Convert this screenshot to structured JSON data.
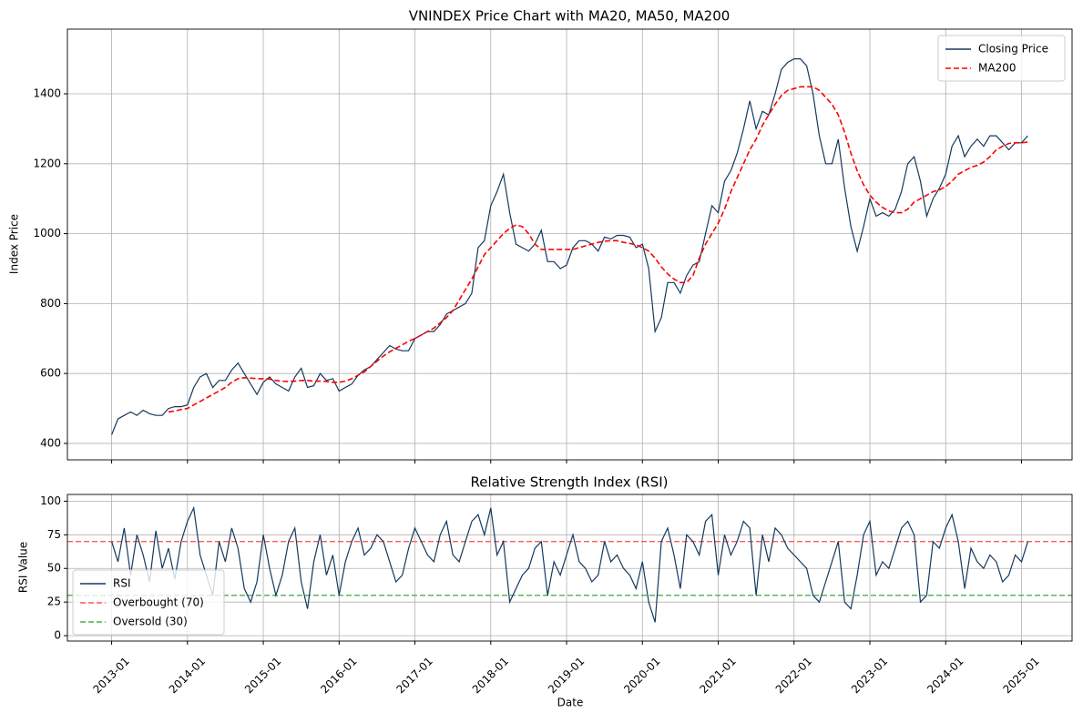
{
  "chart_data": [
    {
      "type": "line",
      "title": "VNINDEX Price Chart with MA20, MA50, MA200",
      "y_label": "Index Price",
      "x": [
        "2013-01",
        "2013-02",
        "2013-03",
        "2013-04",
        "2013-05",
        "2013-06",
        "2013-07",
        "2013-08",
        "2013-09",
        "2013-10",
        "2013-11",
        "2013-12",
        "2014-01",
        "2014-02",
        "2014-03",
        "2014-04",
        "2014-05",
        "2014-06",
        "2014-07",
        "2014-08",
        "2014-09",
        "2014-10",
        "2014-11",
        "2014-12",
        "2015-01",
        "2015-02",
        "2015-03",
        "2015-04",
        "2015-05",
        "2015-06",
        "2015-07",
        "2015-08",
        "2015-09",
        "2015-10",
        "2015-11",
        "2015-12",
        "2016-01",
        "2016-02",
        "2016-03",
        "2016-04",
        "2016-05",
        "2016-06",
        "2016-07",
        "2016-08",
        "2016-09",
        "2016-10",
        "2016-11",
        "2016-12",
        "2017-01",
        "2017-02",
        "2017-03",
        "2017-04",
        "2017-05",
        "2017-06",
        "2017-07",
        "2017-08",
        "2017-09",
        "2017-10",
        "2017-11",
        "2017-12",
        "2018-01",
        "2018-02",
        "2018-03",
        "2018-04",
        "2018-05",
        "2018-06",
        "2018-07",
        "2018-08",
        "2018-09",
        "2018-10",
        "2018-11",
        "2018-12",
        "2019-01",
        "2019-02",
        "2019-03",
        "2019-04",
        "2019-05",
        "2019-06",
        "2019-07",
        "2019-08",
        "2019-09",
        "2019-10",
        "2019-11",
        "2019-12",
        "2020-01",
        "2020-02",
        "2020-03",
        "2020-04",
        "2020-05",
        "2020-06",
        "2020-07",
        "2020-08",
        "2020-09",
        "2020-10",
        "2020-11",
        "2020-12",
        "2021-01",
        "2021-02",
        "2021-03",
        "2021-04",
        "2021-05",
        "2021-06",
        "2021-07",
        "2021-08",
        "2021-09",
        "2021-10",
        "2021-11",
        "2021-12",
        "2022-01",
        "2022-02",
        "2022-03",
        "2022-04",
        "2022-05",
        "2022-06",
        "2022-07",
        "2022-08",
        "2022-09",
        "2022-10",
        "2022-11",
        "2022-12",
        "2023-01",
        "2023-02",
        "2023-03",
        "2023-04",
        "2023-05",
        "2023-06",
        "2023-07",
        "2023-08",
        "2023-09",
        "2023-10",
        "2023-11",
        "2023-12",
        "2024-01",
        "2024-02",
        "2024-03",
        "2024-04",
        "2024-05",
        "2024-06",
        "2024-07",
        "2024-08",
        "2024-09",
        "2024-10",
        "2024-11",
        "2024-12",
        "2025-01",
        "2025-02"
      ],
      "xlim": [
        "2012-06",
        "2025-09"
      ],
      "ylim": [
        353,
        1585
      ],
      "yticks": [
        400,
        600,
        800,
        1000,
        1200,
        1400
      ],
      "grid": true,
      "legend": "upper right",
      "series": [
        {
          "name": "Closing Price",
          "color": "#14395e",
          "dash": false,
          "values": [
            425,
            470,
            480,
            490,
            480,
            495,
            485,
            480,
            480,
            500,
            505,
            505,
            510,
            560,
            590,
            600,
            560,
            580,
            580,
            610,
            630,
            600,
            570,
            540,
            575,
            590,
            570,
            560,
            550,
            590,
            615,
            560,
            565,
            600,
            580,
            585,
            550,
            560,
            570,
            595,
            610,
            620,
            640,
            660,
            680,
            670,
            665,
            665,
            700,
            710,
            720,
            720,
            740,
            770,
            780,
            790,
            800,
            830,
            960,
            980,
            1080,
            1120,
            1170,
            1060,
            970,
            960,
            950,
            970,
            1010,
            920,
            920,
            900,
            910,
            960,
            980,
            980,
            970,
            950,
            990,
            985,
            995,
            995,
            990,
            960,
            970,
            900,
            720,
            760,
            860,
            860,
            830,
            880,
            910,
            920,
            1000,
            1080,
            1060,
            1150,
            1180,
            1230,
            1300,
            1380,
            1300,
            1350,
            1340,
            1400,
            1470,
            1490,
            1500,
            1500,
            1480,
            1400,
            1280,
            1200,
            1200,
            1270,
            1130,
            1020,
            950,
            1020,
            1100,
            1050,
            1060,
            1050,
            1070,
            1120,
            1200,
            1220,
            1150,
            1050,
            1100,
            1130,
            1170,
            1250,
            1280,
            1220,
            1250,
            1270,
            1250,
            1280,
            1280,
            1260,
            1240,
            1260,
            1260,
            1280
          ]
        },
        {
          "name": "MA200",
          "color": "#ff0000",
          "dash": true,
          "values": [
            null,
            null,
            null,
            null,
            null,
            null,
            null,
            null,
            null,
            490,
            493,
            497,
            500,
            510,
            520,
            530,
            540,
            550,
            560,
            575,
            585,
            588,
            587,
            585,
            585,
            584,
            580,
            578,
            577,
            578,
            580,
            580,
            578,
            578,
            577,
            575,
            575,
            578,
            585,
            595,
            605,
            620,
            635,
            650,
            662,
            672,
            682,
            692,
            700,
            710,
            720,
            730,
            745,
            760,
            780,
            810,
            840,
            870,
            905,
            940,
            960,
            980,
            1000,
            1015,
            1025,
            1020,
            1000,
            970,
            955,
            955,
            955,
            955,
            955,
            955,
            960,
            965,
            970,
            975,
            978,
            980,
            980,
            975,
            972,
            968,
            960,
            950,
            930,
            905,
            885,
            870,
            860,
            860,
            880,
            930,
            970,
            1000,
            1030,
            1070,
            1120,
            1160,
            1200,
            1240,
            1270,
            1310,
            1340,
            1370,
            1395,
            1410,
            1415,
            1420,
            1420,
            1420,
            1410,
            1390,
            1370,
            1340,
            1290,
            1230,
            1180,
            1140,
            1110,
            1090,
            1075,
            1065,
            1060,
            1060,
            1070,
            1090,
            1100,
            1110,
            1120,
            1125,
            1135,
            1150,
            1170,
            1180,
            1190,
            1195,
            1205,
            1220,
            1240,
            1250,
            1258,
            1260,
            1260,
            1262
          ]
        }
      ]
    },
    {
      "type": "line",
      "title": "Relative Strength Index (RSI)",
      "y_label": "RSI Value",
      "x_label": "Date",
      "x": [
        "2013-01",
        "2013-02",
        "2013-03",
        "2013-04",
        "2013-05",
        "2013-06",
        "2013-07",
        "2013-08",
        "2013-09",
        "2013-10",
        "2013-11",
        "2013-12",
        "2014-01",
        "2014-02",
        "2014-03",
        "2014-04",
        "2014-05",
        "2014-06",
        "2014-07",
        "2014-08",
        "2014-09",
        "2014-10",
        "2014-11",
        "2014-12",
        "2015-01",
        "2015-02",
        "2015-03",
        "2015-04",
        "2015-05",
        "2015-06",
        "2015-07",
        "2015-08",
        "2015-09",
        "2015-10",
        "2015-11",
        "2015-12",
        "2016-01",
        "2016-02",
        "2016-03",
        "2016-04",
        "2016-05",
        "2016-06",
        "2016-07",
        "2016-08",
        "2016-09",
        "2016-10",
        "2016-11",
        "2016-12",
        "2017-01",
        "2017-02",
        "2017-03",
        "2017-04",
        "2017-05",
        "2017-06",
        "2017-07",
        "2017-08",
        "2017-09",
        "2017-10",
        "2017-11",
        "2017-12",
        "2018-01",
        "2018-02",
        "2018-03",
        "2018-04",
        "2018-05",
        "2018-06",
        "2018-07",
        "2018-08",
        "2018-09",
        "2018-10",
        "2018-11",
        "2018-12",
        "2019-01",
        "2019-02",
        "2019-03",
        "2019-04",
        "2019-05",
        "2019-06",
        "2019-07",
        "2019-08",
        "2019-09",
        "2019-10",
        "2019-11",
        "2019-12",
        "2020-01",
        "2020-02",
        "2020-03",
        "2020-04",
        "2020-05",
        "2020-06",
        "2020-07",
        "2020-08",
        "2020-09",
        "2020-10",
        "2020-11",
        "2020-12",
        "2021-01",
        "2021-02",
        "2021-03",
        "2021-04",
        "2021-05",
        "2021-06",
        "2021-07",
        "2021-08",
        "2021-09",
        "2021-10",
        "2021-11",
        "2021-12",
        "2022-01",
        "2022-02",
        "2022-03",
        "2022-04",
        "2022-05",
        "2022-06",
        "2022-07",
        "2022-08",
        "2022-09",
        "2022-10",
        "2022-11",
        "2022-12",
        "2023-01",
        "2023-02",
        "2023-03",
        "2023-04",
        "2023-05",
        "2023-06",
        "2023-07",
        "2023-08",
        "2023-09",
        "2023-10",
        "2023-11",
        "2023-12",
        "2024-01",
        "2024-02",
        "2024-03",
        "2024-04",
        "2024-05",
        "2024-06",
        "2024-07",
        "2024-08",
        "2024-09",
        "2024-10",
        "2024-11",
        "2024-12",
        "2025-01",
        "2025-02"
      ],
      "xlim": [
        "2012-06",
        "2025-09"
      ],
      "xticks": [
        "2013-01",
        "2014-01",
        "2015-01",
        "2016-01",
        "2017-01",
        "2018-01",
        "2019-01",
        "2020-01",
        "2021-01",
        "2022-01",
        "2023-01",
        "2024-01",
        "2025-01"
      ],
      "ylim": [
        -4,
        105
      ],
      "yticks": [
        0,
        25,
        50,
        75,
        100
      ],
      "grid": true,
      "legend": "lower left",
      "series": [
        {
          "name": "RSI",
          "color": "#14395e",
          "dash": false,
          "values": [
            70,
            55,
            80,
            45,
            75,
            60,
            40,
            78,
            50,
            65,
            42,
            70,
            85,
            95,
            60,
            45,
            30,
            70,
            55,
            80,
            65,
            35,
            25,
            40,
            75,
            50,
            30,
            45,
            70,
            80,
            40,
            20,
            55,
            75,
            45,
            60,
            30,
            55,
            70,
            80,
            60,
            65,
            75,
            70,
            55,
            40,
            45,
            65,
            80,
            70,
            60,
            55,
            75,
            85,
            60,
            55,
            70,
            85,
            90,
            75,
            95,
            60,
            70,
            25,
            35,
            45,
            50,
            65,
            70,
            30,
            55,
            45,
            60,
            75,
            55,
            50,
            40,
            45,
            70,
            55,
            60,
            50,
            45,
            35,
            55,
            25,
            10,
            70,
            80,
            60,
            35,
            75,
            70,
            60,
            85,
            90,
            45,
            75,
            60,
            70,
            85,
            80,
            30,
            75,
            55,
            80,
            75,
            65,
            60,
            55,
            50,
            30,
            25,
            40,
            55,
            70,
            25,
            20,
            45,
            75,
            85,
            45,
            55,
            50,
            65,
            80,
            85,
            75,
            25,
            30,
            70,
            65,
            80,
            90,
            70,
            35,
            65,
            55,
            50,
            60,
            55,
            40,
            45,
            60,
            55,
            70
          ]
        }
      ],
      "hlines": [
        {
          "name": "Overbought (70)",
          "value": 70,
          "color": "#ff5a5a"
        },
        {
          "name": "Oversold (30)",
          "value": 30,
          "color": "#4caf50"
        }
      ]
    }
  ]
}
